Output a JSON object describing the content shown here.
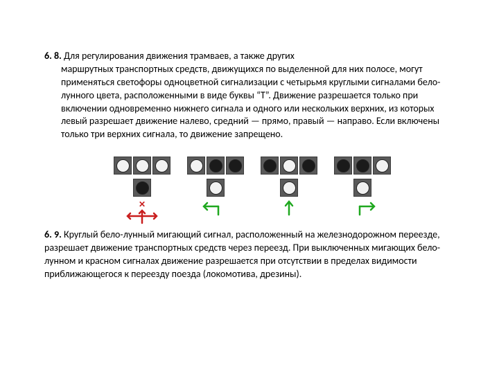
{
  "sections": {
    "s68": {
      "num": "6. 8.",
      "lead": "Для регулирования движения трамваев, а также других",
      "body": "маршрутных транспортных средств, движущихся по выделенной для них полосе, могут применяться светофоры одноцветной сигнализации с четырьмя круглыми сигналами бело-лунного цвета, расположенными в виде буквы “Т”. Движение разрешается только при включении одновременно нижнего сигнала и одного или нескольких верхних, из которых левый разрешает движение налево, средний — прямо, правый — направо. Если включены только три верхних сигнала, то движение запрещено."
    },
    "s69": {
      "num": "6. 9.",
      "text": "Круглый бело-лунный мигающий сигнал, расположенный на железнодорожном переезде, разрешает движение транспортных средств через переезд. При выключенных мигающих бело-лунном и красном сигналах движение разрешается при отсутствии в пределах видимости приближающегося к переезду поезда (локомотива, дрезины)."
    }
  },
  "signals": [
    {
      "name": "all-stop",
      "top": [
        "on",
        "on",
        "on"
      ],
      "bottom": "off",
      "arrow": "stop",
      "arrow_color": "#c91e1e"
    },
    {
      "name": "left",
      "top": [
        "on",
        "off",
        "off"
      ],
      "bottom": "on",
      "arrow": "left",
      "arrow_color": "#1fa81f"
    },
    {
      "name": "straight",
      "top": [
        "off",
        "on",
        "off"
      ],
      "bottom": "on",
      "arrow": "straight",
      "arrow_color": "#1fa81f"
    },
    {
      "name": "right",
      "top": [
        "off",
        "off",
        "on"
      ],
      "bottom": "on",
      "arrow": "right",
      "arrow_color": "#1fa81f"
    }
  ],
  "colors": {
    "panel": "#5a5a5a",
    "lamp_on": "#f2f2f2",
    "lamp_off": "#1a1a1a",
    "red": "#c91e1e",
    "green": "#1fa81f"
  }
}
